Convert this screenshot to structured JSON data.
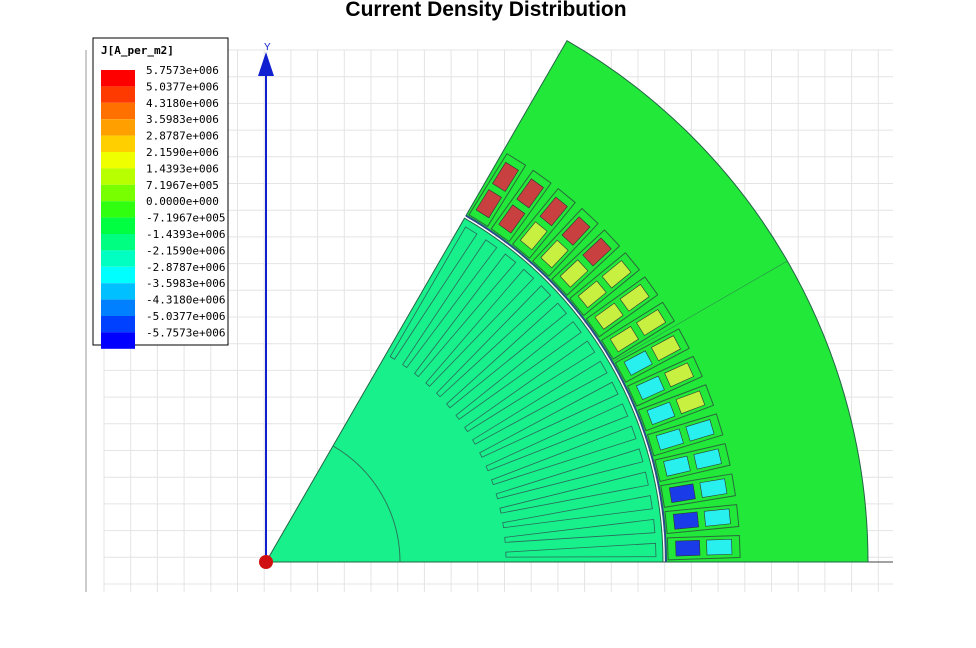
{
  "title": "Current Density Distribution",
  "axis_label": "Y",
  "legend": {
    "title": "J[A_per_m2]",
    "entries": [
      {
        "label": "5.7573e+006",
        "color": "#ff0000"
      },
      {
        "label": "5.0377e+006",
        "color": "#ff3a00"
      },
      {
        "label": "4.3180e+006",
        "color": "#ff7000"
      },
      {
        "label": "3.5983e+006",
        "color": "#ffa000"
      },
      {
        "label": "2.8787e+006",
        "color": "#ffcf00"
      },
      {
        "label": "2.1590e+006",
        "color": "#f0ff00"
      },
      {
        "label": "1.4393e+006",
        "color": "#b8ff00"
      },
      {
        "label": "7.1967e+005",
        "color": "#78ff00"
      },
      {
        "label": "0.0000e+000",
        "color": "#30ff10"
      },
      {
        "label": "-7.1967e+005",
        "color": "#00ff40"
      },
      {
        "label": "-1.4393e+006",
        "color": "#00ff80"
      },
      {
        "label": "-2.1590e+006",
        "color": "#00ffc0"
      },
      {
        "label": "-2.8787e+006",
        "color": "#00ffff"
      },
      {
        "label": "-3.5983e+006",
        "color": "#00c0ff"
      },
      {
        "label": "-4.3180e+006",
        "color": "#0080ff"
      },
      {
        "label": "-5.0377e+006",
        "color": "#0040ff"
      },
      {
        "label": "-5.7573e+006",
        "color": "#0000ff"
      }
    ]
  }
}
